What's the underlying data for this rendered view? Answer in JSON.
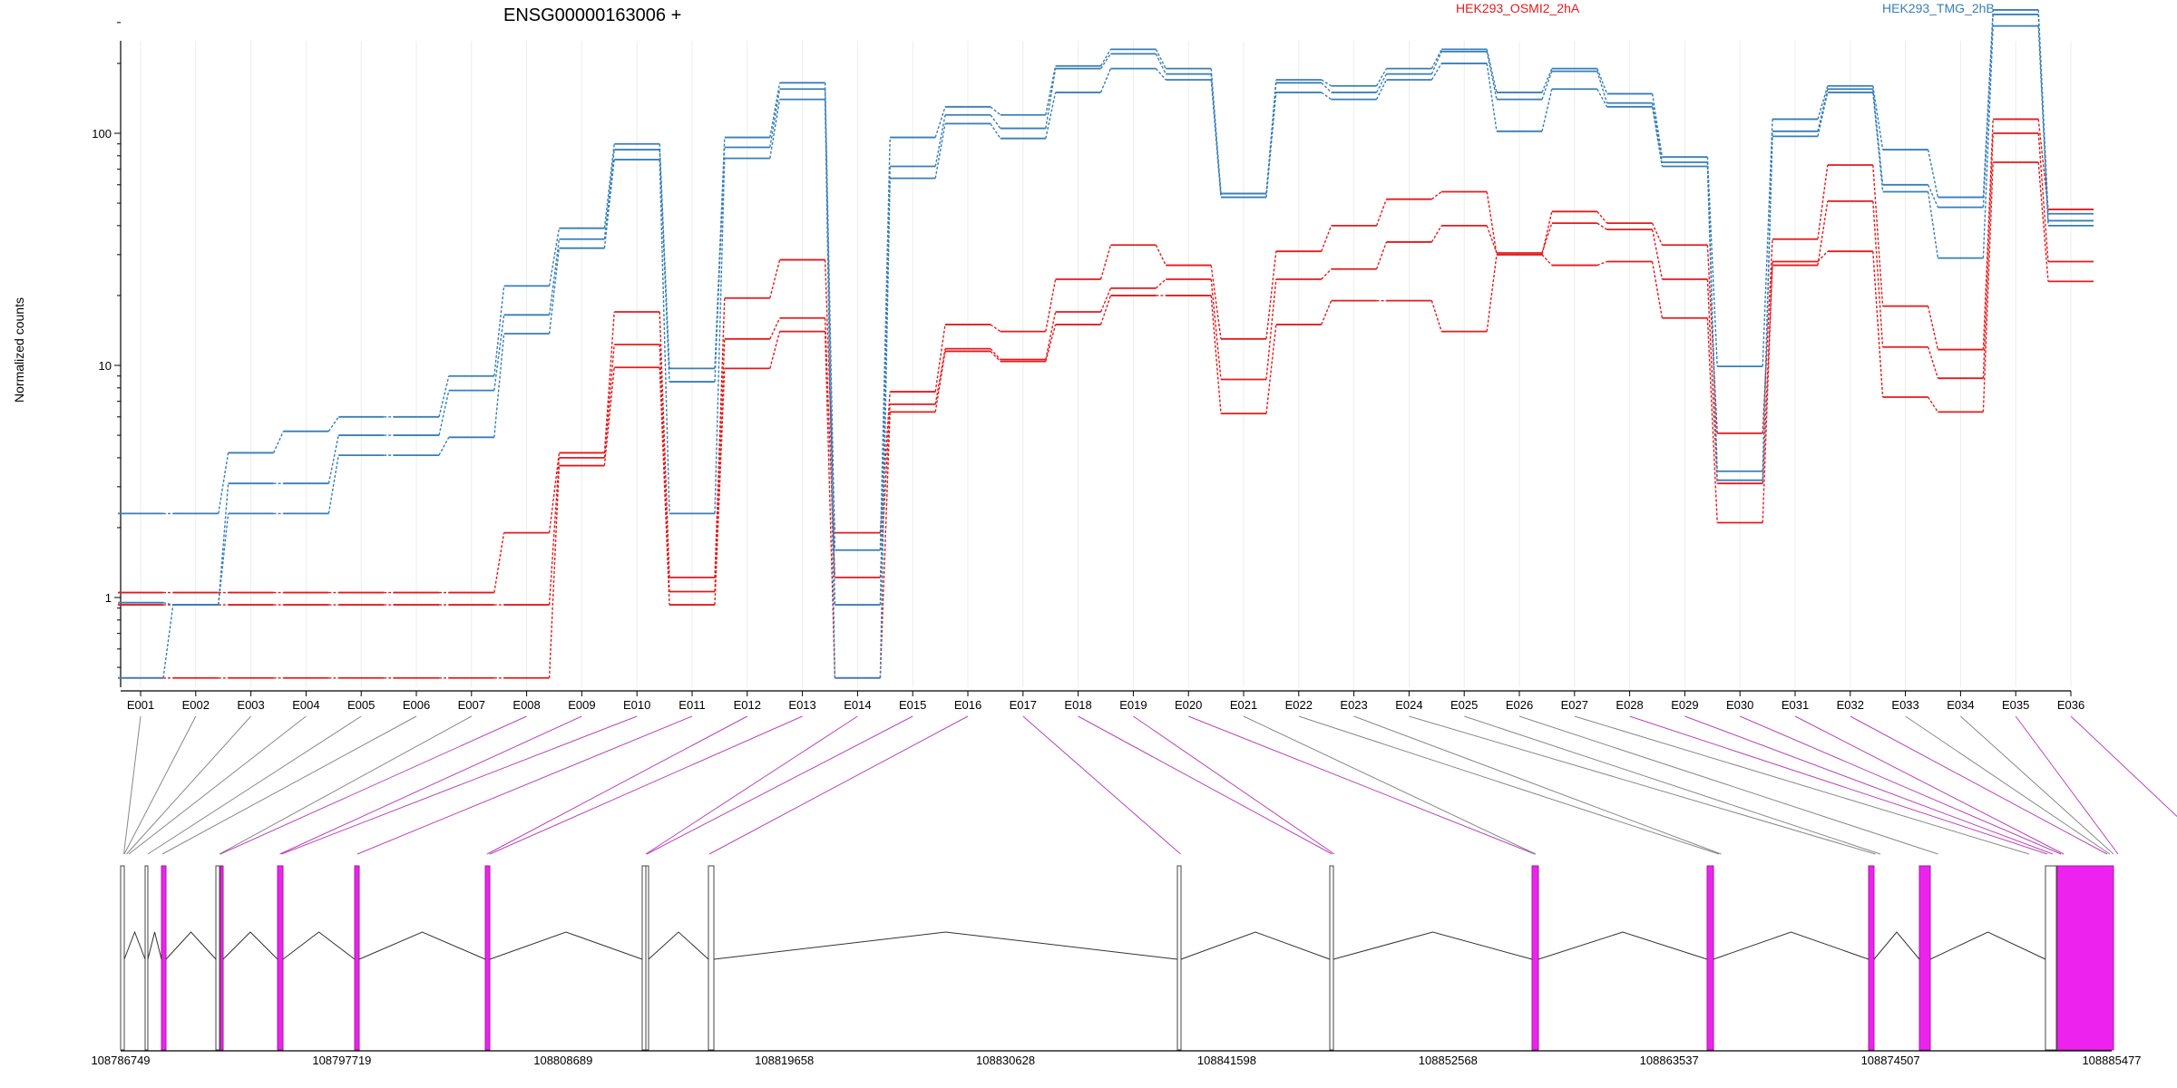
{
  "chart_data": {
    "type": "line",
    "title": "ENSG00000163006 +",
    "xlabel": "",
    "ylabel": "Normalized counts",
    "yscale": "log",
    "y_ticks": [
      1,
      10,
      100
    ],
    "y_tick_labels": [
      "1",
      "10",
      "100"
    ],
    "ylim": [
      0.47,
      430
    ],
    "grid": "vertical",
    "legend_position": "top",
    "categories": [
      "E001",
      "E002",
      "E003",
      "E004",
      "E005",
      "E006",
      "E007",
      "E008",
      "E009",
      "E010",
      "E011",
      "E012",
      "E013",
      "E014",
      "E015",
      "E016",
      "E017",
      "E018",
      "E019",
      "E020",
      "E021",
      "E022",
      "E023",
      "E024",
      "E025",
      "E026",
      "E027",
      "E028",
      "E029",
      "E030",
      "E031",
      "E032",
      "E033",
      "E034",
      "E035",
      "E036"
    ],
    "groups": [
      {
        "name": "HEK293_OSMI2_2hA",
        "color": "#e41a1c"
      },
      {
        "name": "HEK293_TMG_2hB",
        "color": "#377eb8"
      }
    ],
    "series": [
      {
        "group": "HEK293_OSMI2_2hA",
        "values": [
          0.45,
          0.45,
          0.45,
          0.45,
          0.45,
          0.45,
          0.45,
          0.45,
          3.7,
          9.8,
          0.93,
          9.7,
          14,
          0.45,
          6.3,
          11.5,
          10.4,
          15,
          20,
          20,
          6.2,
          15,
          19,
          19,
          14,
          30,
          27,
          28,
          16,
          2.1,
          28,
          31,
          7.3,
          6.3,
          75,
          23
        ]
      },
      {
        "group": "HEK293_OSMI2_2hA",
        "values": [
          0.93,
          0.93,
          0.93,
          0.93,
          0.93,
          0.93,
          0.93,
          0.93,
          4.0,
          12.3,
          1.06,
          13,
          16,
          1.22,
          6.8,
          11.8,
          10.6,
          17,
          21.5,
          23.5,
          8.7,
          23.5,
          26,
          34,
          40,
          30.5,
          41,
          38.5,
          23.5,
          3.1,
          27,
          51,
          12,
          8.8,
          100,
          28
        ]
      },
      {
        "group": "HEK293_OSMI2_2hA",
        "values": [
          1.05,
          1.05,
          1.05,
          1.05,
          1.05,
          1.05,
          1.05,
          1.9,
          4.2,
          17,
          1.22,
          19.5,
          28.5,
          1.9,
          7.7,
          15,
          14,
          23.5,
          33,
          27,
          13,
          31,
          40,
          52,
          56,
          30,
          46,
          41,
          33,
          5.1,
          35,
          73,
          18,
          11.7,
          115,
          47
        ]
      },
      {
        "group": "HEK293_TMG_2hB",
        "values": [
          0.45,
          0.93,
          2.3,
          2.3,
          4.1,
          4.1,
          4.9,
          13.7,
          32,
          77,
          2.3,
          78,
          140,
          0.45,
          64,
          110,
          95,
          150,
          190,
          170,
          53,
          150,
          140,
          170,
          200,
          102,
          155,
          130,
          72,
          3.2,
          97,
          150,
          56,
          29,
          290,
          40
        ]
      },
      {
        "group": "HEK293_TMG_2hB",
        "values": [
          0.95,
          0.93,
          3.1,
          3.1,
          5.0,
          5.0,
          7.8,
          16.5,
          35,
          85,
          8.5,
          87,
          155,
          0.93,
          72,
          120,
          105,
          190,
          220,
          180,
          55,
          165,
          150,
          180,
          225,
          140,
          185,
          135,
          75,
          3.5,
          102,
          155,
          60,
          48,
          325,
          42
        ]
      },
      {
        "group": "HEK293_TMG_2hB",
        "values": [
          2.3,
          2.3,
          4.2,
          5.2,
          6.0,
          6.0,
          9.0,
          22,
          39,
          90,
          9.7,
          96,
          165,
          1.6,
          96,
          130,
          120,
          195,
          230,
          190,
          55,
          170,
          160,
          190,
          230,
          150,
          190,
          148,
          79,
          9.9,
          115,
          160,
          85,
          53,
          340,
          45
        ]
      }
    ]
  },
  "gene_model": {
    "coord_labels": [
      "108786749",
      "108797719",
      "108808689",
      "108819658",
      "108830628",
      "108841598",
      "108852568",
      "108863537",
      "108874507",
      "108885477"
    ],
    "connection_colors": {
      "default": "#888888",
      "highlight": "#bb44bb"
    },
    "exon_colors": {
      "normal": "#bbbbbb",
      "highlight": "#ee22ee"
    },
    "highlighted_exons": [
      "E008",
      "E009",
      "E010",
      "E011",
      "E012",
      "E013",
      "E014",
      "E015",
      "E016",
      "E017",
      "E018",
      "E019",
      "E020",
      "E028",
      "E029",
      "E030",
      "E031",
      "E032",
      "E035",
      "E036"
    ]
  }
}
